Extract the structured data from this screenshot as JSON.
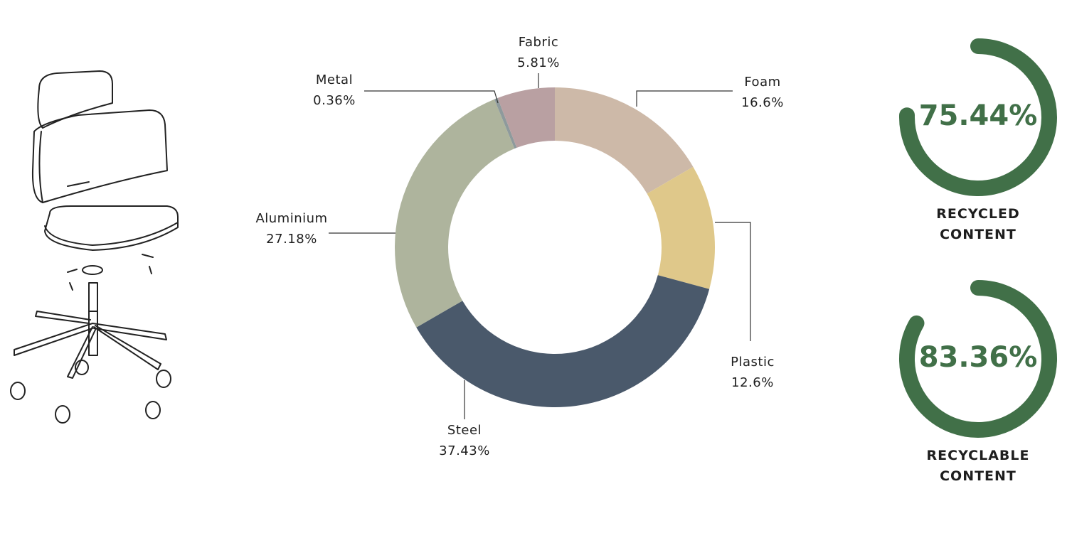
{
  "chart_data": [
    {
      "type": "donut",
      "categories": [
        "Foam",
        "Plastic",
        "Steel",
        "Aluminium",
        "Metal",
        "Fabric"
      ],
      "values": [
        16.6,
        12.6,
        37.43,
        27.18,
        0.36,
        5.81
      ],
      "value_labels": [
        "16.6%",
        "12.6%",
        "37.43%",
        "27.18%",
        "0.36%",
        "5.81%"
      ],
      "colors": [
        "#cdb9a8",
        "#dfc88a",
        "#4a596b",
        "#aeb49d",
        "#8e9a9c",
        "#b9a0a2"
      ]
    },
    {
      "type": "gauge",
      "value": 75.44,
      "value_label": "75.44%",
      "label": "RECYCLED CONTENT",
      "color": "#417048"
    },
    {
      "type": "gauge",
      "value": 83.36,
      "value_label": "83.36%",
      "label": "RECYCLABLE CONTENT",
      "color": "#417048"
    }
  ]
}
